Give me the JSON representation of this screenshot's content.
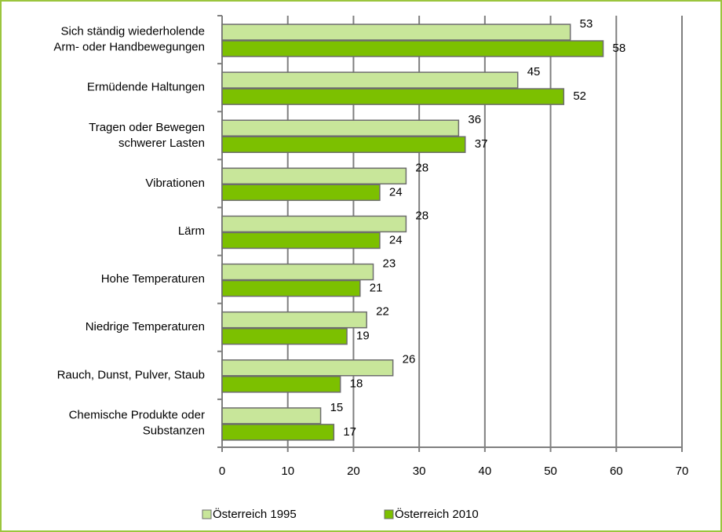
{
  "chart_data": {
    "type": "bar",
    "orientation": "horizontal",
    "categories": [
      "Sich ständig wiederholende\nArm- oder Handbewegungen",
      "Ermüdende Haltungen",
      "Tragen oder Bewegen\nschwerer Lasten",
      "Vibrationen",
      "Lärm",
      "Hohe Temperaturen",
      "Niedrige Temperaturen",
      "Rauch, Dunst, Pulver, Staub",
      "Chemische Produkte oder\nSubstanzen"
    ],
    "series": [
      {
        "name": "Österreich 1995",
        "color": "#c8e69a",
        "values": [
          53,
          45,
          36,
          28,
          28,
          23,
          22,
          26,
          15
        ]
      },
      {
        "name": "Österreich 2010",
        "color": "#7cc000",
        "values": [
          58,
          52,
          37,
          24,
          24,
          21,
          19,
          18,
          17
        ]
      }
    ],
    "xlim": [
      0,
      70
    ],
    "xticks": [
      0,
      10,
      20,
      30,
      40,
      50,
      60,
      70
    ],
    "grid": true,
    "legend": "bottom"
  }
}
